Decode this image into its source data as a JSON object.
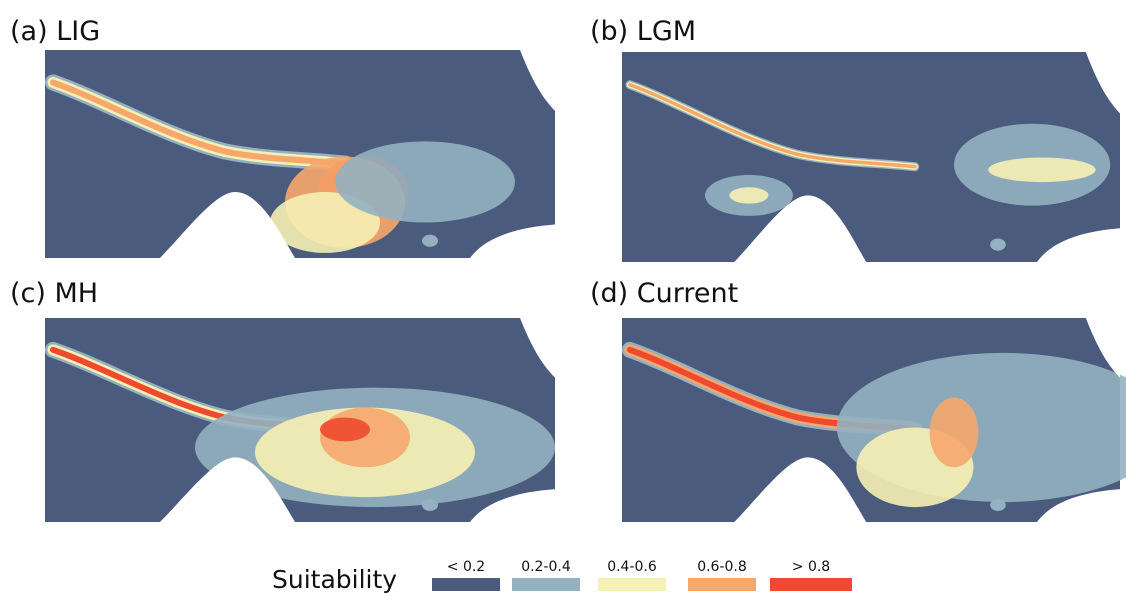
{
  "panels": [
    {
      "label": "(a) LIG"
    },
    {
      "label": "(b) LGM"
    },
    {
      "label": "(c) MH"
    },
    {
      "label": "(d) Current"
    }
  ],
  "legend": {
    "title": "Suitability",
    "items": [
      {
        "label": "< 0.2",
        "color": "#4a5b7d"
      },
      {
        "label": "0.2-0.4",
        "color": "#93b1c1"
      },
      {
        "label": "0.4-0.6",
        "color": "#f6f0b4"
      },
      {
        "label": "0.6-0.8",
        "color": "#f6a76c"
      },
      {
        "label": "> 0.8",
        "color": "#ee4a2f"
      }
    ]
  }
}
